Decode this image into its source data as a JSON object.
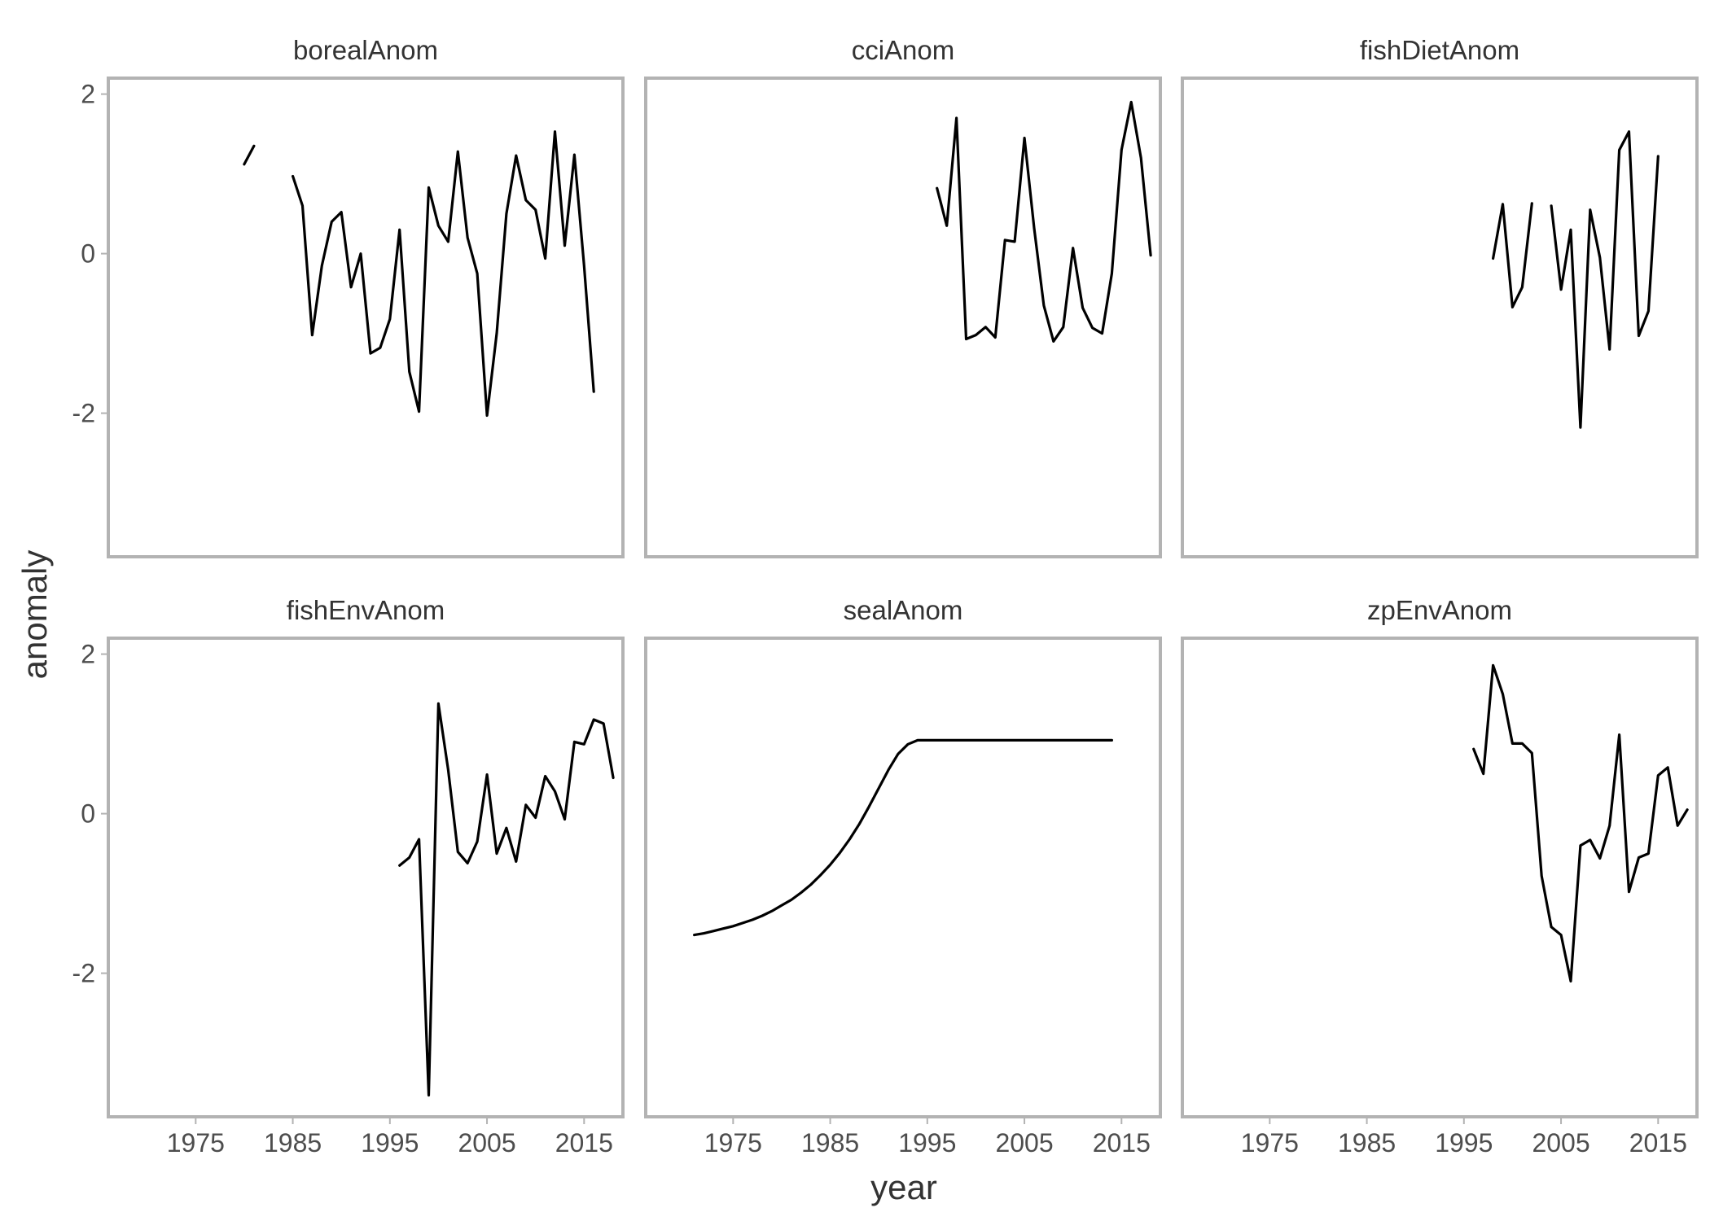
{
  "chart_data": {
    "type": "line",
    "xlabel": "year",
    "ylabel": "anomaly",
    "xlim": [
      1966,
      2019
    ],
    "ylim": [
      -3.8,
      2.2
    ],
    "x_ticks": [
      1975,
      1985,
      1995,
      2005,
      2015
    ],
    "x_tick_labels": [
      "1975",
      "1985",
      "1995",
      "2005",
      "2015"
    ],
    "y_ticks": [
      -2,
      0,
      2
    ],
    "y_tick_labels": [
      "-2",
      "0",
      "2"
    ],
    "grid": false,
    "line_color": "#000000",
    "panel_border_color": "#b3b3b3",
    "facets": [
      {
        "name": "borealAnom",
        "segments": [
          [
            [
              1980,
              1.12
            ],
            [
              1981,
              1.35
            ]
          ],
          [
            [
              1985,
              0.97
            ],
            [
              1986,
              0.6
            ],
            [
              1987,
              -1.02
            ],
            [
              1988,
              -0.15
            ],
            [
              1989,
              0.4
            ],
            [
              1990,
              0.52
            ],
            [
              1991,
              -0.42
            ],
            [
              1992,
              0.0
            ],
            [
              1993,
              -1.25
            ],
            [
              1994,
              -1.18
            ],
            [
              1995,
              -0.82
            ],
            [
              1996,
              0.3
            ],
            [
              1997,
              -1.48
            ],
            [
              1998,
              -1.98
            ],
            [
              1999,
              0.83
            ],
            [
              2000,
              0.35
            ],
            [
              2001,
              0.15
            ],
            [
              2002,
              1.28
            ],
            [
              2003,
              0.2
            ],
            [
              2004,
              -0.25
            ],
            [
              2005,
              -2.03
            ],
            [
              2006,
              -1.0
            ],
            [
              2007,
              0.5
            ],
            [
              2008,
              1.23
            ],
            [
              2009,
              0.67
            ],
            [
              2010,
              0.55
            ],
            [
              2011,
              -0.06
            ],
            [
              2012,
              1.53
            ],
            [
              2013,
              0.1
            ],
            [
              2014,
              1.24
            ],
            [
              2015,
              -0.15
            ],
            [
              2016,
              -1.73
            ]
          ]
        ]
      },
      {
        "name": "cciAnom",
        "segments": [
          [
            [
              1996,
              0.82
            ],
            [
              1997,
              0.35
            ],
            [
              1998,
              1.7
            ],
            [
              1999,
              -1.07
            ],
            [
              2000,
              -1.02
            ],
            [
              2001,
              -0.92
            ],
            [
              2002,
              -1.05
            ],
            [
              2003,
              0.17
            ],
            [
              2004,
              0.15
            ],
            [
              2005,
              1.45
            ],
            [
              2006,
              0.32
            ],
            [
              2007,
              -0.65
            ],
            [
              2008,
              -1.1
            ],
            [
              2009,
              -0.92
            ],
            [
              2010,
              0.07
            ],
            [
              2011,
              -0.68
            ],
            [
              2012,
              -0.93
            ],
            [
              2013,
              -1.0
            ],
            [
              2014,
              -0.25
            ],
            [
              2015,
              1.3
            ],
            [
              2016,
              1.9
            ],
            [
              2017,
              1.2
            ],
            [
              2018,
              -0.02
            ]
          ]
        ]
      },
      {
        "name": "fishDietAnom",
        "segments": [
          [
            [
              1998,
              -0.06
            ],
            [
              1999,
              0.62
            ],
            [
              2000,
              -0.67
            ],
            [
              2001,
              -0.42
            ],
            [
              2002,
              0.63
            ]
          ],
          [
            [
              2004,
              0.6
            ],
            [
              2005,
              -0.45
            ],
            [
              2006,
              0.3
            ],
            [
              2007,
              -2.18
            ],
            [
              2008,
              0.55
            ],
            [
              2009,
              -0.05
            ],
            [
              2010,
              -1.2
            ],
            [
              2011,
              1.3
            ],
            [
              2012,
              1.53
            ],
            [
              2013,
              -1.03
            ],
            [
              2014,
              -0.72
            ],
            [
              2015,
              1.22
            ]
          ]
        ]
      },
      {
        "name": "fishEnvAnom",
        "segments": [
          [
            [
              1996,
              -0.65
            ],
            [
              1997,
              -0.55
            ],
            [
              1998,
              -0.32
            ],
            [
              1999,
              -3.53
            ],
            [
              2000,
              1.38
            ],
            [
              2001,
              0.55
            ],
            [
              2002,
              -0.48
            ],
            [
              2003,
              -0.62
            ],
            [
              2004,
              -0.35
            ],
            [
              2005,
              0.49
            ],
            [
              2006,
              -0.5
            ],
            [
              2007,
              -0.18
            ],
            [
              2008,
              -0.6
            ],
            [
              2009,
              0.11
            ],
            [
              2010,
              -0.05
            ],
            [
              2011,
              0.47
            ],
            [
              2012,
              0.28
            ],
            [
              2013,
              -0.07
            ],
            [
              2014,
              0.9
            ],
            [
              2015,
              0.87
            ],
            [
              2016,
              1.18
            ],
            [
              2017,
              1.13
            ],
            [
              2018,
              0.45
            ]
          ]
        ]
      },
      {
        "name": "sealAnom",
        "segments": [
          [
            [
              1971,
              -1.52
            ],
            [
              1972,
              -1.5
            ],
            [
              1973,
              -1.47
            ],
            [
              1974,
              -1.44
            ],
            [
              1975,
              -1.41
            ],
            [
              1976,
              -1.37
            ],
            [
              1977,
              -1.33
            ],
            [
              1978,
              -1.28
            ],
            [
              1979,
              -1.22
            ],
            [
              1980,
              -1.15
            ],
            [
              1981,
              -1.08
            ],
            [
              1982,
              -0.99
            ],
            [
              1983,
              -0.89
            ],
            [
              1984,
              -0.77
            ],
            [
              1985,
              -0.64
            ],
            [
              1986,
              -0.49
            ],
            [
              1987,
              -0.32
            ],
            [
              1988,
              -0.13
            ],
            [
              1989,
              0.09
            ],
            [
              1990,
              0.32
            ],
            [
              1991,
              0.55
            ],
            [
              1992,
              0.75
            ],
            [
              1993,
              0.87
            ],
            [
              1994,
              0.92
            ],
            [
              1995,
              0.92
            ],
            [
              2000,
              0.92
            ],
            [
              2005,
              0.92
            ],
            [
              2010,
              0.92
            ],
            [
              2014,
              0.92
            ]
          ]
        ]
      },
      {
        "name": "zpEnvAnom",
        "segments": [
          [
            [
              1996,
              0.81
            ],
            [
              1997,
              0.5
            ],
            [
              1998,
              1.86
            ],
            [
              1999,
              1.5
            ],
            [
              2000,
              0.88
            ],
            [
              2001,
              0.88
            ],
            [
              2002,
              0.76
            ],
            [
              2003,
              -0.78
            ],
            [
              2004,
              -1.42
            ],
            [
              2005,
              -1.52
            ],
            [
              2006,
              -2.1
            ],
            [
              2007,
              -0.4
            ],
            [
              2008,
              -0.33
            ],
            [
              2009,
              -0.56
            ],
            [
              2010,
              -0.15
            ],
            [
              2011,
              0.99
            ],
            [
              2012,
              -0.98
            ],
            [
              2013,
              -0.55
            ],
            [
              2014,
              -0.5
            ],
            [
              2015,
              0.48
            ],
            [
              2016,
              0.58
            ],
            [
              2017,
              -0.15
            ],
            [
              2018,
              0.05
            ]
          ]
        ]
      }
    ]
  }
}
